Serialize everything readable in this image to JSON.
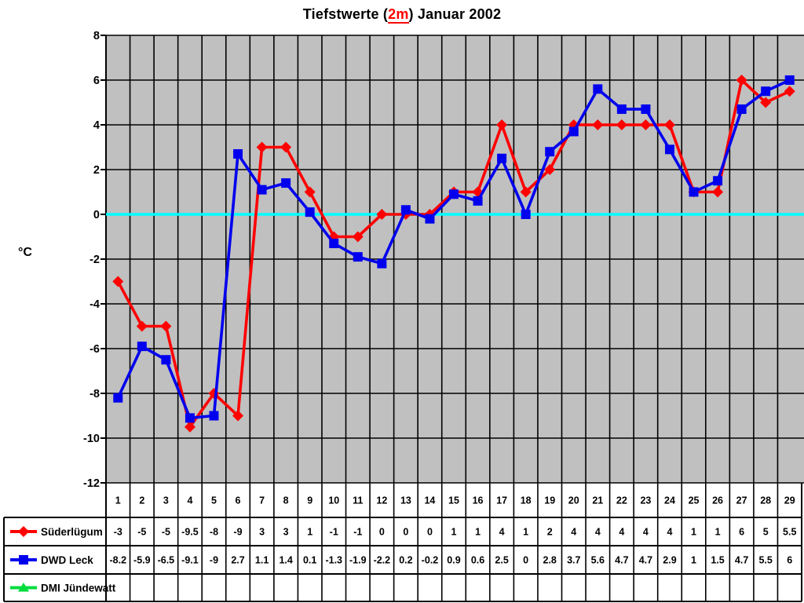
{
  "title": {
    "prefix": "Tiefstwerte (",
    "highlight": "2m",
    "suffix": ") Januar 2002"
  },
  "y_axis_unit": "°C",
  "chart_data": {
    "type": "line",
    "title": "Tiefstwerte (2m) Januar 2002",
    "xlabel": "",
    "ylabel": "°C",
    "ylim": [
      -12,
      8
    ],
    "ytick_step": 2,
    "grid": true,
    "plot_background": "#c0c0c0",
    "grid_color": "#000000",
    "zero_line_color": "#00ffff",
    "legend_position": "table-left",
    "categories": [
      1,
      2,
      3,
      4,
      5,
      6,
      7,
      8,
      9,
      10,
      11,
      12,
      13,
      14,
      15,
      16,
      17,
      18,
      19,
      20,
      21,
      22,
      23,
      24,
      25,
      26,
      27,
      28,
      29
    ],
    "series": [
      {
        "name": "Süderlügum",
        "color": "#ff0000",
        "marker": "diamond",
        "values": [
          -3,
          -5,
          -5,
          -9.5,
          -8,
          -9,
          3,
          3,
          1,
          -1,
          -1,
          0,
          0,
          0,
          1,
          1,
          4,
          1,
          2,
          4,
          4,
          4,
          4,
          4,
          1,
          1,
          6,
          5,
          5.5
        ]
      },
      {
        "name": "DWD Leck",
        "color": "#0000ee",
        "marker": "square",
        "values": [
          -8.2,
          -5.9,
          -6.5,
          -9.1,
          -9,
          2.7,
          1.1,
          1.4,
          0.1,
          -1.3,
          -1.9,
          -2.2,
          0.2,
          -0.2,
          0.9,
          0.6,
          2.5,
          0,
          2.8,
          3.7,
          5.6,
          4.7,
          4.7,
          2.9,
          1,
          1.5,
          4.7,
          5.5,
          6
        ]
      },
      {
        "name": "DMI Jündewatt",
        "color": "#00dc3c",
        "marker": "triangle",
        "values": []
      }
    ]
  }
}
